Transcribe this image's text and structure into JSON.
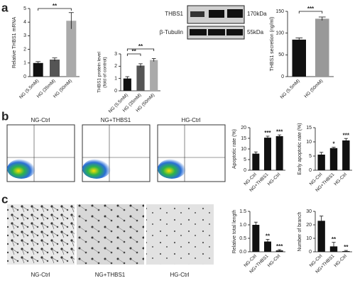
{
  "panel_labels": [
    "a",
    "b",
    "c"
  ],
  "blot": {
    "rows": [
      "THBS1",
      "β-Tubulin"
    ],
    "sizes": [
      "170kDa",
      "55kDa"
    ]
  },
  "flow": {
    "titles": [
      "NG-Ctrl",
      "NG+THBS1",
      "HG-Ctrl"
    ]
  },
  "micrographs": {
    "captions": [
      "NG-Ctrl",
      "NG+THBS1",
      "HG-Ctrl"
    ]
  },
  "chart_data": [
    {
      "type": "bar",
      "y_label": "Relative THBS1 mRNA",
      "categories": [
        "NG (5.5mM)",
        "HG (35mM)",
        "HG (50mM)"
      ],
      "values": [
        1.0,
        1.25,
        4.1
      ],
      "errors": [
        0.1,
        0.12,
        0.6
      ],
      "colors": [
        "#111111",
        "#555555",
        "#aaaaaa"
      ],
      "ylim": [
        0,
        5
      ],
      "yticks": [
        0,
        1,
        2,
        3,
        4,
        5
      ],
      "significance": [
        {
          "label": "**",
          "between": [
            0,
            2
          ]
        }
      ]
    },
    {
      "type": "bar",
      "y_label": "THBS1 protein level",
      "y_label2": "(fold of control)",
      "categories": [
        "NG (5.5mM)",
        "HG (35mM)",
        "HG (50mM)"
      ],
      "values": [
        1.0,
        2.05,
        2.5
      ],
      "errors": [
        0.15,
        0.15,
        0.12
      ],
      "colors": [
        "#111111",
        "#555555",
        "#aaaaaa"
      ],
      "ylim": [
        0,
        3
      ],
      "yticks": [
        0,
        1,
        2,
        3
      ],
      "significance": [
        {
          "label": "**",
          "between": [
            0,
            1
          ]
        },
        {
          "label": "**",
          "between": [
            0,
            2
          ]
        }
      ]
    },
    {
      "type": "bar",
      "y_label": "THBS1 secretion (ng/ml)",
      "categories": [
        "NG (5.5mM)",
        "HG (50mM)"
      ],
      "values": [
        85,
        133
      ],
      "errors": [
        4,
        4
      ],
      "colors": [
        "#111111",
        "#999999"
      ],
      "ylim": [
        0,
        150
      ],
      "yticks": [
        0,
        50,
        100,
        150
      ],
      "significance": [
        {
          "label": "***",
          "between": [
            0,
            1
          ]
        }
      ]
    },
    {
      "type": "bar",
      "y_label": "Apoptotic rate (%)",
      "categories": [
        "NG-Ctrl",
        "NG+THBS1",
        "HG-Ctrl"
      ],
      "values": [
        7.8,
        15.3,
        16
      ],
      "errors": [
        0.8,
        0.7,
        0.6
      ],
      "colors": [
        "#111111",
        "#111111",
        "#111111"
      ],
      "ylim": [
        0,
        20
      ],
      "yticks": [
        0,
        5,
        10,
        15,
        20
      ],
      "bar_labels": [
        null,
        "***",
        "***"
      ]
    },
    {
      "type": "bar",
      "y_label": "Early apoptotic rate (%)",
      "categories": [
        "NG-Ctrl",
        "NG+THBS1",
        "HG-Ctrl"
      ],
      "values": [
        5.5,
        7.8,
        10.5
      ],
      "errors": [
        0.8,
        0.3,
        0.7
      ],
      "colors": [
        "#111111",
        "#111111",
        "#111111"
      ],
      "ylim": [
        0,
        15
      ],
      "yticks": [
        0,
        5,
        10,
        15
      ],
      "bar_labels": [
        null,
        "*",
        "***"
      ]
    },
    {
      "type": "bar",
      "y_label": "Relative total length",
      "categories": [
        "NG-Ctrl",
        "NG+THBS1",
        "HG-Ctrl"
      ],
      "values": [
        1.0,
        0.38,
        0.05
      ],
      "errors": [
        0.1,
        0.08,
        0.03
      ],
      "colors": [
        "#111111",
        "#111111",
        "#111111"
      ],
      "ylim": [
        0,
        1.5
      ],
      "yticks": [
        {
          "value": 0,
          "label": "0.0"
        },
        0.5,
        {
          "value": 1,
          "label": "1.0"
        },
        1.5
      ],
      "bar_labels": [
        null,
        "**",
        "***"
      ]
    },
    {
      "type": "bar",
      "y_label": "Number of branch",
      "categories": [
        "NG-Ctrl",
        "NG+THBS1",
        "HG-Ctrl"
      ],
      "values": [
        23,
        4,
        0.5
      ],
      "errors": [
        3.5,
        3,
        0.5
      ],
      "colors": [
        "#111111",
        "#111111",
        "#111111"
      ],
      "ylim": [
        0,
        30
      ],
      "yticks": [
        0,
        10,
        20,
        30
      ],
      "bar_labels": [
        null,
        "**",
        "**"
      ]
    }
  ]
}
